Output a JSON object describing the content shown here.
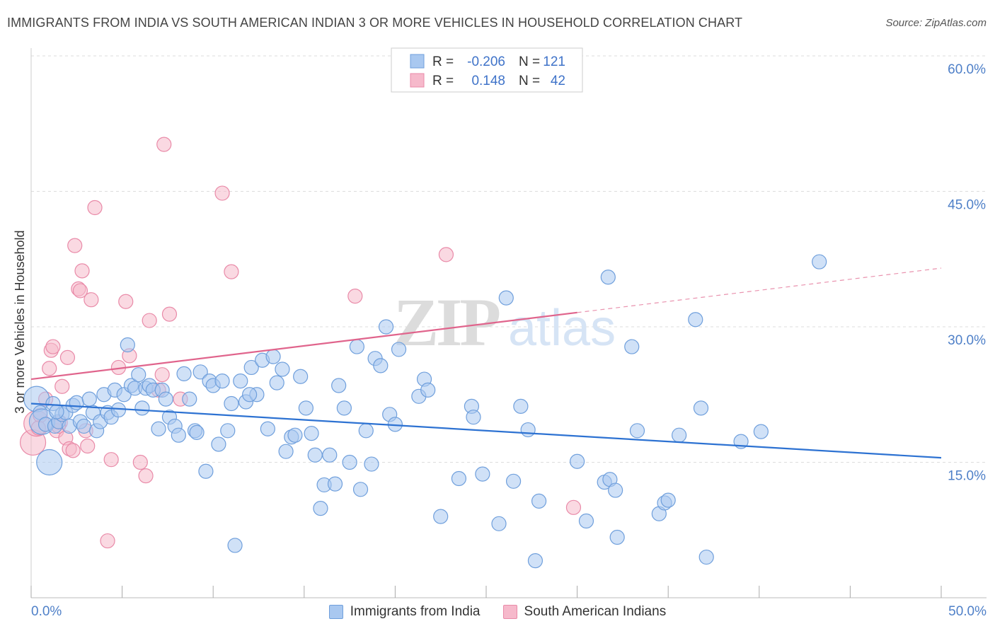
{
  "header": {
    "title": "IMMIGRANTS FROM INDIA VS SOUTH AMERICAN INDIAN 3 OR MORE VEHICLES IN HOUSEHOLD CORRELATION CHART",
    "source": "Source: ZipAtlas.com"
  },
  "watermark": {
    "zip": "ZIP",
    "atlas": "atlas"
  },
  "colors": {
    "blue_fill": "#a9c8f0",
    "blue_stroke": "#6f9fdc",
    "blue_line": "#2d72d2",
    "pink_fill": "#f6b9cb",
    "pink_stroke": "#e98aa8",
    "pink_line": "#e0648c",
    "tick_label": "#4f80c8",
    "grid": "#dddddd"
  },
  "stats_legend": [
    {
      "r_label": "R =",
      "r_value": "-0.206",
      "n_label": "N =",
      "n_value": "121"
    },
    {
      "r_label": "R =",
      "r_value": "0.148",
      "n_label": "N =",
      "n_value": "42"
    }
  ],
  "chart_data": {
    "type": "scatter",
    "title": "IMMIGRANTS FROM INDIA VS SOUTH AMERICAN INDIAN 3 OR MORE VEHICLES IN HOUSEHOLD CORRELATION CHART",
    "xlabel": "",
    "ylabel": "3 or more Vehicles in Household",
    "xlim": [
      0,
      50
    ],
    "ylim": [
      0,
      60
    ],
    "x_tick_labels": [
      "0.0%",
      "50.0%"
    ],
    "y_ticks": [
      15,
      30,
      45,
      60
    ],
    "y_tick_labels": [
      "15.0%",
      "30.0%",
      "45.0%",
      "60.0%"
    ],
    "grid": true,
    "legend_position": "top-center",
    "series": [
      {
        "name": "Immigrants from India",
        "color": "#a9c8f0",
        "trend": {
          "x": [
            0,
            50
          ],
          "y": [
            21.5,
            15.5
          ],
          "dashed_from": null
        },
        "points": [
          [
            0.3,
            22.0
          ],
          [
            0.5,
            20.5
          ],
          [
            0.6,
            19.5
          ],
          [
            0.8,
            19.2
          ],
          [
            1.0,
            15.0
          ],
          [
            1.2,
            21.5
          ],
          [
            1.3,
            19.0
          ],
          [
            1.5,
            19.5
          ],
          [
            1.7,
            20.3
          ],
          [
            1.9,
            20.5
          ],
          [
            2.1,
            19.0
          ],
          [
            2.3,
            21.3
          ],
          [
            2.5,
            21.6
          ],
          [
            2.7,
            19.5
          ],
          [
            2.9,
            19.0
          ],
          [
            3.2,
            22.0
          ],
          [
            3.4,
            20.5
          ],
          [
            3.6,
            18.5
          ],
          [
            3.8,
            19.5
          ],
          [
            4.0,
            22.5
          ],
          [
            4.2,
            20.5
          ],
          [
            4.4,
            20.0
          ],
          [
            4.6,
            23.0
          ],
          [
            4.8,
            20.8
          ],
          [
            5.1,
            22.5
          ],
          [
            5.3,
            28.0
          ],
          [
            5.5,
            23.5
          ],
          [
            5.7,
            23.2
          ],
          [
            5.9,
            24.7
          ],
          [
            6.1,
            21.0
          ],
          [
            6.3,
            23.2
          ],
          [
            6.5,
            23.5
          ],
          [
            6.7,
            23.0
          ],
          [
            7.0,
            18.7
          ],
          [
            7.2,
            23.0
          ],
          [
            7.4,
            22.0
          ],
          [
            7.6,
            20.0
          ],
          [
            7.9,
            19.0
          ],
          [
            8.1,
            18.0
          ],
          [
            8.4,
            24.8
          ],
          [
            8.7,
            22.0
          ],
          [
            9.0,
            18.5
          ],
          [
            9.3,
            25.0
          ],
          [
            9.6,
            14.0
          ],
          [
            9.8,
            24.0
          ],
          [
            10.0,
            23.5
          ],
          [
            10.3,
            17.0
          ],
          [
            10.5,
            24.0
          ],
          [
            10.8,
            18.5
          ],
          [
            11.0,
            21.5
          ],
          [
            11.2,
            5.8
          ],
          [
            11.5,
            24.0
          ],
          [
            11.8,
            21.7
          ],
          [
            12.1,
            25.5
          ],
          [
            12.4,
            22.5
          ],
          [
            12.7,
            26.3
          ],
          [
            13.0,
            18.7
          ],
          [
            13.3,
            26.7
          ],
          [
            13.5,
            23.8
          ],
          [
            13.8,
            25.3
          ],
          [
            14.0,
            16.2
          ],
          [
            14.3,
            17.8
          ],
          [
            14.5,
            18.0
          ],
          [
            14.8,
            24.5
          ],
          [
            15.1,
            21.0
          ],
          [
            15.4,
            18.2
          ],
          [
            15.6,
            15.8
          ],
          [
            15.9,
            9.9
          ],
          [
            16.1,
            12.5
          ],
          [
            16.4,
            15.8
          ],
          [
            16.7,
            12.6
          ],
          [
            16.9,
            23.5
          ],
          [
            17.2,
            21.0
          ],
          [
            17.5,
            15.0
          ],
          [
            17.9,
            27.8
          ],
          [
            18.1,
            12.0
          ],
          [
            18.4,
            18.5
          ],
          [
            18.7,
            14.8
          ],
          [
            18.9,
            26.5
          ],
          [
            19.2,
            25.7
          ],
          [
            19.5,
            30.0
          ],
          [
            19.7,
            20.3
          ],
          [
            20.0,
            19.2
          ],
          [
            20.2,
            27.5
          ],
          [
            21.3,
            22.3
          ],
          [
            21.6,
            24.2
          ],
          [
            21.8,
            23.0
          ],
          [
            22.5,
            9.0
          ],
          [
            23.5,
            13.2
          ],
          [
            24.2,
            21.2
          ],
          [
            24.3,
            20.0
          ],
          [
            24.8,
            13.7
          ],
          [
            25.7,
            8.2
          ],
          [
            26.1,
            33.2
          ],
          [
            26.5,
            12.9
          ],
          [
            26.9,
            21.2
          ],
          [
            27.3,
            18.6
          ],
          [
            27.7,
            4.1
          ],
          [
            27.9,
            10.7
          ],
          [
            30.0,
            15.1
          ],
          [
            30.5,
            8.5
          ],
          [
            31.5,
            12.8
          ],
          [
            31.7,
            35.5
          ],
          [
            31.8,
            13.1
          ],
          [
            32.1,
            11.9
          ],
          [
            32.2,
            6.7
          ],
          [
            33.0,
            27.8
          ],
          [
            33.3,
            18.5
          ],
          [
            34.5,
            9.3
          ],
          [
            34.8,
            10.5
          ],
          [
            35.0,
            10.8
          ],
          [
            35.6,
            18.0
          ],
          [
            36.5,
            30.8
          ],
          [
            36.8,
            21.0
          ],
          [
            37.1,
            4.5
          ],
          [
            39.0,
            17.3
          ],
          [
            40.1,
            18.4
          ],
          [
            43.3,
            37.2
          ],
          [
            1.4,
            20.6
          ],
          [
            12.0,
            22.5
          ],
          [
            9.1,
            18.3
          ]
        ],
        "point_sizes": [
          [
            0,
            "large"
          ],
          [
            4,
            "large"
          ],
          [
            2,
            "large"
          ]
        ]
      },
      {
        "name": "South American Indians",
        "color": "#f6b9cb",
        "trend": {
          "x": [
            0,
            50
          ],
          "y": [
            24.2,
            36.5
          ],
          "dashed_from": 30
        },
        "points": [
          [
            0.1,
            17.2
          ],
          [
            0.3,
            19.3
          ],
          [
            0.5,
            20.2
          ],
          [
            0.8,
            22.0
          ],
          [
            1.0,
            25.4
          ],
          [
            1.1,
            27.4
          ],
          [
            1.2,
            27.8
          ],
          [
            1.4,
            18.5
          ],
          [
            1.6,
            19.4
          ],
          [
            1.7,
            23.4
          ],
          [
            1.9,
            17.7
          ],
          [
            2.0,
            26.6
          ],
          [
            2.1,
            16.5
          ],
          [
            2.3,
            16.3
          ],
          [
            2.4,
            39.0
          ],
          [
            2.6,
            34.2
          ],
          [
            2.7,
            34.0
          ],
          [
            2.8,
            36.2
          ],
          [
            3.0,
            18.5
          ],
          [
            3.1,
            16.8
          ],
          [
            3.3,
            33.0
          ],
          [
            3.5,
            43.2
          ],
          [
            4.2,
            6.3
          ],
          [
            4.4,
            15.3
          ],
          [
            4.8,
            25.5
          ],
          [
            5.2,
            32.8
          ],
          [
            5.4,
            26.8
          ],
          [
            6.0,
            15.0
          ],
          [
            6.3,
            13.5
          ],
          [
            6.5,
            30.7
          ],
          [
            7.0,
            23.0
          ],
          [
            7.2,
            24.7
          ],
          [
            7.3,
            50.2
          ],
          [
            7.6,
            31.4
          ],
          [
            8.2,
            22.0
          ],
          [
            10.5,
            44.8
          ],
          [
            11.0,
            36.1
          ],
          [
            17.8,
            33.4
          ],
          [
            22.8,
            38.0
          ],
          [
            29.8,
            10.0
          ],
          [
            0.4,
            18.8
          ],
          [
            1.5,
            19.0
          ]
        ],
        "point_sizes": [
          [
            0,
            "large"
          ],
          [
            1,
            "large"
          ]
        ]
      }
    ]
  },
  "bottom_legend": [
    {
      "label": "Immigrants from India"
    },
    {
      "label": "South American Indians"
    }
  ]
}
